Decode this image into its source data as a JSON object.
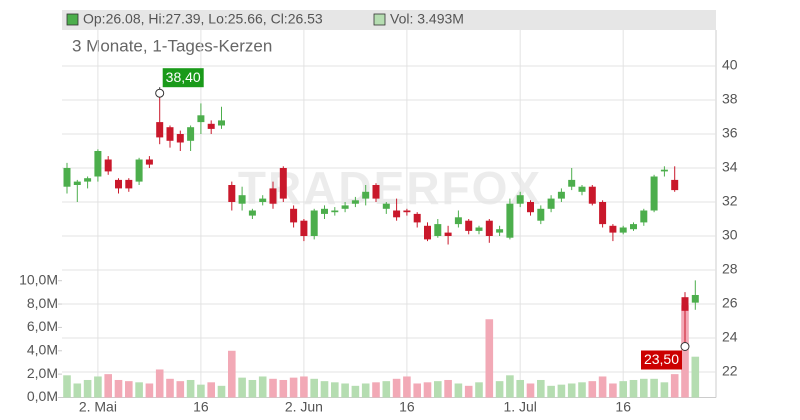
{
  "chart_data": {
    "type": "candlestick",
    "subtitle": "3 Monate, 1-Tages-Kerzen",
    "legend": {
      "ohlc": "Op:26.08, Hi:27.39, Lo:25.66, Cl:26.53",
      "volume": "Vol: 3.493M"
    },
    "watermark": "TRADERFOX",
    "categories": [
      null,
      null,
      null,
      "2. Mai",
      null,
      null,
      null,
      null,
      null,
      null,
      null,
      null,
      null,
      "16",
      null,
      null,
      null,
      null,
      null,
      null,
      null,
      null,
      null,
      "2. Jun",
      null,
      null,
      null,
      null,
      null,
      null,
      null,
      null,
      null,
      "16",
      null,
      null,
      null,
      null,
      null,
      null,
      null,
      null,
      null,
      null,
      "1. Jul",
      null,
      null,
      null,
      null,
      null,
      null,
      null,
      null,
      null,
      "16",
      null,
      null,
      null,
      null,
      null,
      null,
      null
    ],
    "open": [
      32.9,
      33.0,
      33.2,
      33.5,
      34.5,
      33.3,
      33.3,
      33.2,
      34.5,
      36.7,
      36.4,
      36.0,
      35.6,
      36.7,
      36.6,
      36.5,
      33.0,
      31.9,
      31.2,
      32.0,
      32.8,
      34.0,
      31.6,
      30.9,
      30.0,
      31.3,
      31.4,
      31.6,
      31.9,
      32.2,
      33.0,
      31.6,
      31.5,
      31.5,
      31.3,
      30.6,
      30.0,
      30.2,
      30.7,
      30.9,
      30.3,
      30.9,
      30.2,
      29.9,
      31.9,
      32.0,
      30.9,
      31.6,
      32.2,
      32.9,
      32.6,
      32.9,
      32.0,
      30.6,
      30.2,
      30.4,
      30.8,
      31.5,
      33.8,
      33.3,
      26.4,
      26.08
    ],
    "high": [
      34.3,
      33.3,
      33.5,
      35.1,
      34.7,
      33.4,
      33.4,
      34.6,
      34.7,
      38.4,
      36.5,
      36.2,
      36.5,
      37.8,
      36.8,
      37.6,
      33.2,
      32.9,
      31.6,
      32.4,
      33.2,
      34.1,
      31.8,
      31.0,
      31.6,
      31.8,
      31.7,
      32.0,
      32.3,
      33.0,
      33.1,
      32.0,
      32.2,
      31.6,
      31.4,
      30.8,
      31.0,
      30.6,
      31.5,
      31.0,
      30.6,
      31.0,
      30.6,
      32.2,
      32.6,
      32.1,
      31.8,
      32.4,
      32.8,
      34.0,
      33.0,
      33.0,
      32.1,
      30.7,
      30.6,
      30.8,
      31.6,
      33.6,
      34.1,
      34.1,
      26.7,
      27.39
    ],
    "low": [
      32.5,
      32.0,
      32.8,
      33.2,
      33.6,
      32.5,
      32.6,
      33.0,
      34.0,
      35.4,
      35.2,
      35.0,
      35.0,
      36.0,
      36.0,
      36.3,
      31.5,
      31.5,
      31.0,
      31.8,
      31.6,
      32.0,
      30.5,
      29.7,
      29.8,
      31.0,
      31.2,
      31.4,
      31.7,
      31.8,
      32.0,
      31.3,
      30.9,
      31.2,
      30.5,
      29.7,
      29.9,
      29.5,
      30.5,
      30.1,
      30.1,
      29.6,
      30.0,
      29.8,
      31.7,
      31.2,
      30.7,
      31.4,
      32.0,
      32.7,
      32.4,
      31.8,
      30.5,
      29.7,
      30.1,
      30.3,
      30.6,
      31.4,
      33.5,
      32.6,
      23.5,
      25.66
    ],
    "close": [
      34.0,
      33.2,
      33.4,
      35.0,
      33.8,
      32.8,
      32.8,
      34.5,
      34.2,
      35.8,
      35.6,
      35.5,
      36.4,
      37.1,
      36.3,
      36.8,
      32.0,
      32.4,
      31.5,
      32.2,
      31.9,
      32.2,
      30.8,
      30.0,
      31.5,
      31.6,
      31.5,
      31.8,
      32.1,
      32.6,
      32.2,
      31.9,
      31.1,
      31.4,
      30.8,
      29.8,
      30.7,
      30.0,
      31.1,
      30.3,
      30.5,
      30.0,
      30.4,
      31.9,
      32.4,
      31.4,
      31.6,
      32.2,
      32.6,
      33.3,
      32.9,
      31.9,
      30.7,
      30.2,
      30.5,
      30.7,
      31.5,
      33.5,
      33.9,
      32.7,
      25.6,
      26.53
    ],
    "volume": [
      1.9,
      1.2,
      1.5,
      1.8,
      2.0,
      1.5,
      1.4,
      1.3,
      1.2,
      2.4,
      1.6,
      1.4,
      1.5,
      1.1,
      1.3,
      1.0,
      4.0,
      1.7,
      1.5,
      1.8,
      1.6,
      1.5,
      1.7,
      1.8,
      1.6,
      1.4,
      1.3,
      1.2,
      1.0,
      1.2,
      1.3,
      1.4,
      1.6,
      1.8,
      1.2,
      1.3,
      1.4,
      1.5,
      1.2,
      1.0,
      1.3,
      6.7,
      1.4,
      1.9,
      1.5,
      1.2,
      1.5,
      1.0,
      1.1,
      1.2,
      1.3,
      1.4,
      1.8,
      1.2,
      1.4,
      1.5,
      1.6,
      1.6,
      1.3,
      2.0,
      7.9,
      3.493
    ],
    "up_color": "#4cae4c",
    "down_color": "#c9182b",
    "volume_up_color": "#b5ddb1",
    "volume_down_color": "#f2a9b6",
    "ylim": [
      20.5,
      41.8
    ],
    "yticks": [
      22,
      24,
      26,
      28,
      30,
      32,
      34,
      36,
      38,
      40
    ],
    "y2lim": [
      0,
      31
    ],
    "y2ticks": [
      {
        "value": 0,
        "label": "0,0M"
      },
      {
        "value": 2,
        "label": "2,0M"
      },
      {
        "value": 4,
        "label": "4,0M"
      },
      {
        "value": 6,
        "label": "6,0M"
      },
      {
        "value": 8,
        "label": "8,0M"
      },
      {
        "value": 10,
        "label": "10,0M"
      }
    ],
    "annotations": [
      {
        "text": "38,40",
        "value": 38.4,
        "color": "#1a9a1a"
      },
      {
        "text": "23,50",
        "value": 23.5,
        "color": "#cc0000"
      }
    ],
    "grid": true
  }
}
